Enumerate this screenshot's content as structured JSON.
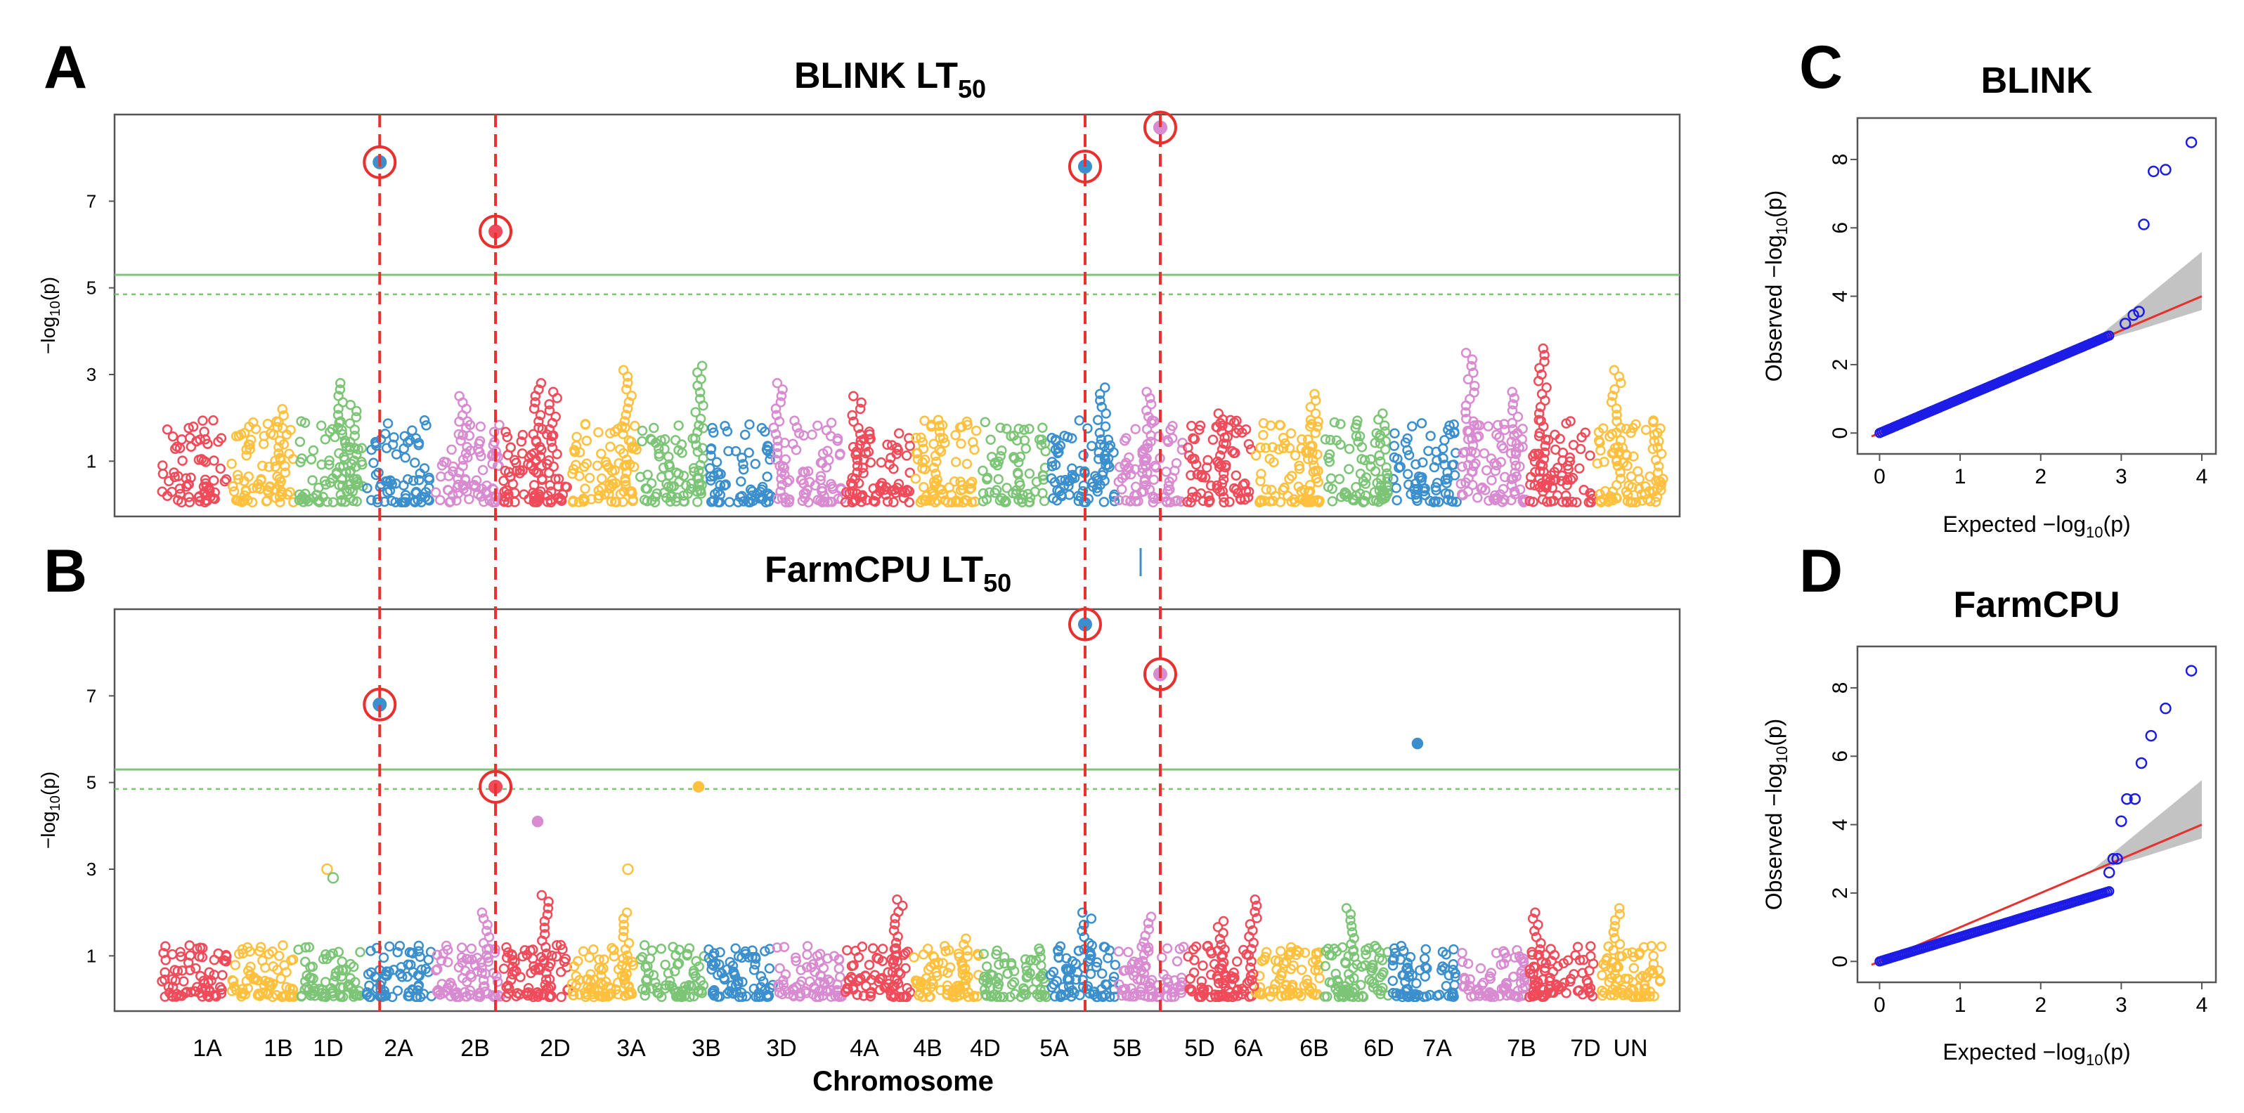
{
  "figure": {
    "panels": {
      "A": "A",
      "B": "B",
      "C": "C",
      "D": "D"
    },
    "colors": {
      "chr": [
        "#F04B5A",
        "#FFC03E",
        "#7CC576",
        "#3B8FCD",
        "#D88BD0"
      ],
      "threshold": "#7CC576",
      "highlight": "#E8312E",
      "qq_points": "#1C1CE6",
      "qq_line": "#E8312E",
      "qq_band": "#BDBDBD"
    }
  },
  "chart_data": [
    {
      "type": "scatter",
      "id": "manhattan-blink",
      "title_main": "BLINK LT",
      "title_sub": "50",
      "ylabel": "−log10(p)",
      "ylabel_main": "−log",
      "ylabel_sub": "10",
      "ylabel_tail": "(p)",
      "ylim": [
        0,
        9
      ],
      "yticks": [
        1,
        3,
        5,
        7
      ],
      "thresholds": {
        "solid": 5.3,
        "dashed": 4.85
      },
      "highlights": [
        {
          "pos": 0.145,
          "y": 7.9
        },
        {
          "pos": 0.222,
          "y": 6.3
        },
        {
          "pos": 0.614,
          "y": 7.8
        },
        {
          "pos": 0.664,
          "y": 8.7
        }
      ],
      "peaks": [
        {
          "pos": 0.08,
          "y": 2.2
        },
        {
          "pos": 0.12,
          "y": 2.8
        },
        {
          "pos": 0.127,
          "y": 2.3
        },
        {
          "pos": 0.2,
          "y": 2.5
        },
        {
          "pos": 0.25,
          "y": 2.8
        },
        {
          "pos": 0.26,
          "y": 2.6
        },
        {
          "pos": 0.31,
          "y": 3.1
        },
        {
          "pos": 0.357,
          "y": 3.2
        },
        {
          "pos": 0.41,
          "y": 2.8
        },
        {
          "pos": 0.462,
          "y": 2.5
        },
        {
          "pos": 0.515,
          "y": 1.95
        },
        {
          "pos": 0.625,
          "y": 2.7
        },
        {
          "pos": 0.655,
          "y": 2.6
        },
        {
          "pos": 0.705,
          "y": 2.1
        },
        {
          "pos": 0.765,
          "y": 2.55
        },
        {
          "pos": 0.812,
          "y": 2.1
        },
        {
          "pos": 0.87,
          "y": 3.5
        },
        {
          "pos": 0.9,
          "y": 2.6
        },
        {
          "pos": 0.918,
          "y": 3.6
        },
        {
          "pos": 0.967,
          "y": 3.1
        },
        {
          "pos": 0.995,
          "y": 1.9
        }
      ],
      "chromosomes": [
        "1A",
        "1B",
        "1D",
        "2A",
        "2B",
        "2D",
        "3A",
        "3B",
        "3D",
        "4A",
        "4B",
        "4D",
        "5A",
        "5B",
        "5D",
        "6A",
        "6B",
        "6D",
        "7A",
        "7B",
        "7D",
        "UN"
      ]
    },
    {
      "type": "scatter",
      "id": "manhattan-farmcpu",
      "title_main": "FarmCPU LT",
      "title_sub": "50",
      "ylabel": "−log10(p)",
      "ylabel_main": "−log",
      "ylabel_sub": "10",
      "ylabel_tail": "(p)",
      "xlabel": "Chromosome",
      "ylim": [
        0,
        9
      ],
      "yticks": [
        1,
        3,
        5,
        7
      ],
      "thresholds": {
        "solid": 5.3,
        "dashed": 4.85
      },
      "highlights": [
        {
          "pos": 0.145,
          "y": 6.8
        },
        {
          "pos": 0.222,
          "y": 4.9
        },
        {
          "pos": 0.614,
          "y": 8.65
        },
        {
          "pos": 0.664,
          "y": 7.5
        }
      ],
      "extra_points": [
        {
          "pos": 0.357,
          "y": 4.9,
          "c": 1
        },
        {
          "pos": 0.835,
          "y": 5.9,
          "c": 3
        },
        {
          "pos": 0.25,
          "y": 4.1,
          "c": 4
        },
        {
          "pos": 0.11,
          "y": 3.0,
          "c": 1
        },
        {
          "pos": 0.114,
          "y": 2.8,
          "c": 2
        },
        {
          "pos": 0.31,
          "y": 3.0,
          "c": 1
        }
      ],
      "peaks": [
        {
          "pos": 0.215,
          "y": 2.0
        },
        {
          "pos": 0.256,
          "y": 2.4
        },
        {
          "pos": 0.31,
          "y": 2.0
        },
        {
          "pos": 0.49,
          "y": 2.3
        },
        {
          "pos": 0.535,
          "y": 1.4
        },
        {
          "pos": 0.615,
          "y": 2.0
        },
        {
          "pos": 0.655,
          "y": 1.9
        },
        {
          "pos": 0.705,
          "y": 1.8
        },
        {
          "pos": 0.726,
          "y": 2.3
        },
        {
          "pos": 0.79,
          "y": 2.1
        },
        {
          "pos": 0.915,
          "y": 2.0
        },
        {
          "pos": 0.967,
          "y": 2.1
        }
      ],
      "chromosomes": [
        "1A",
        "1B",
        "1D",
        "2A",
        "2B",
        "2D",
        "3A",
        "3B",
        "3D",
        "4A",
        "4B",
        "4D",
        "5A",
        "5B",
        "5D",
        "6A",
        "6B",
        "6D",
        "7A",
        "7B",
        "7D",
        "UN"
      ]
    },
    {
      "type": "scatter",
      "id": "qq-blink",
      "title": "BLINK",
      "xlabel": "Expected  −log10(p)",
      "xlabel_main": "Expected  −log",
      "xlabel_sub": "10",
      "xlabel_tail": "(p)",
      "ylabel": "Observed  −log10(p)",
      "ylabel_main": "Observed  −log",
      "ylabel_sub": "10",
      "ylabel_tail": "(p)",
      "xlim": [
        -0.1,
        4
      ],
      "ylim": [
        -0.2,
        8.8
      ],
      "xticks": [
        0,
        1,
        2,
        3,
        4
      ],
      "yticks": [
        0,
        2,
        4,
        6,
        8
      ],
      "tail_points": [
        {
          "x": 3.05,
          "y": 3.2
        },
        {
          "x": 3.15,
          "y": 3.45
        },
        {
          "x": 3.22,
          "y": 3.55
        },
        {
          "x": 3.28,
          "y": 6.1
        },
        {
          "x": 3.4,
          "y": 7.65
        },
        {
          "x": 3.55,
          "y": 7.7
        },
        {
          "x": 3.87,
          "y": 8.5
        }
      ]
    },
    {
      "type": "scatter",
      "id": "qq-farmcpu",
      "title": "FarmCPU",
      "xlabel": "Expected  −log10(p)",
      "xlabel_main": "Expected  −log",
      "xlabel_sub": "10",
      "xlabel_tail": "(p)",
      "ylabel": "Observed  −log10(p)",
      "ylabel_main": "Observed  −log",
      "ylabel_sub": "10",
      "ylabel_tail": "(p)",
      "xlim": [
        -0.1,
        4
      ],
      "ylim": [
        -0.2,
        8.8
      ],
      "xticks": [
        0,
        1,
        2,
        3,
        4
      ],
      "yticks": [
        0,
        2,
        4,
        6,
        8
      ],
      "tail_points": [
        {
          "x": 2.85,
          "y": 2.6
        },
        {
          "x": 2.9,
          "y": 3.0
        },
        {
          "x": 2.95,
          "y": 3.0
        },
        {
          "x": 3.0,
          "y": 4.1
        },
        {
          "x": 3.07,
          "y": 4.75
        },
        {
          "x": 3.17,
          "y": 4.75
        },
        {
          "x": 3.25,
          "y": 5.8
        },
        {
          "x": 3.37,
          "y": 6.6
        },
        {
          "x": 3.55,
          "y": 7.4
        },
        {
          "x": 3.87,
          "y": 8.5
        }
      ]
    }
  ]
}
